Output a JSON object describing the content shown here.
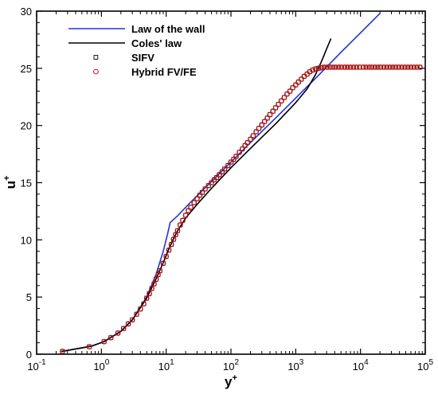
{
  "chart_data": {
    "type": "line",
    "x_scale": "log",
    "xlim": [
      0.1,
      100000
    ],
    "ylim": [
      0,
      30
    ],
    "xlabel": "y",
    "xlabel_sup": "+",
    "ylabel": "u",
    "ylabel_sup": "+",
    "x_tick_values": [
      0.1,
      1,
      10,
      100,
      1000,
      10000,
      100000
    ],
    "x_tick_labels": [
      {
        "base": "10",
        "exp": "-1"
      },
      {
        "base": "10",
        "exp": "0"
      },
      {
        "base": "10",
        "exp": "1"
      },
      {
        "base": "10",
        "exp": "2"
      },
      {
        "base": "10",
        "exp": "3"
      },
      {
        "base": "10",
        "exp": "4"
      },
      {
        "base": "10",
        "exp": "5"
      }
    ],
    "y_tick_values": [
      0,
      5,
      10,
      15,
      20,
      25,
      30
    ],
    "y_tick_labels": [
      "0",
      "5",
      "10",
      "15",
      "20",
      "25",
      "30"
    ],
    "legend_position": "top-left",
    "series": [
      {
        "name": "Law of the wall",
        "style": "line",
        "color": "#2233dd",
        "x": [
          0.24,
          0.7,
          1.1,
          2,
          3,
          5,
          7,
          9,
          10.5,
          11.5,
          12,
          15,
          20,
          30,
          50,
          100,
          200,
          500,
          1000,
          2000,
          5000,
          10000,
          20000
        ],
        "y": [
          0.24,
          0.7,
          1.1,
          2,
          3,
          5,
          7,
          9,
          10.5,
          11.5,
          11.6,
          12.1,
          12.85,
          13.85,
          15.1,
          16.8,
          18.5,
          20.7,
          22.4,
          24.1,
          26.4,
          28.1,
          29.8
        ]
      },
      {
        "name": "Coles' law",
        "style": "line",
        "color": "#000000",
        "x": [
          0.24,
          0.7,
          1.1,
          2,
          3,
          5,
          7,
          9,
          11,
          13,
          15,
          20,
          30,
          50,
          100,
          200,
          500,
          1000,
          1500,
          2000,
          2500,
          3000,
          3500
        ],
        "y": [
          0.24,
          0.7,
          1.1,
          2,
          3,
          4.9,
          6.6,
          8.0,
          9.2,
          10.1,
          10.8,
          11.9,
          13.1,
          14.5,
          16.3,
          18.0,
          20.2,
          22.0,
          23.2,
          24.4,
          25.6,
          26.7,
          27.6
        ]
      },
      {
        "name": "SIFV",
        "style": "square",
        "color": "#000000",
        "x": [
          0.25,
          0.65,
          1.1,
          1.4,
          1.8,
          2.2,
          2.6,
          3,
          3.5,
          4,
          4.5,
          5,
          5.5,
          6,
          6.5,
          7,
          7.5,
          8,
          9,
          10,
          11,
          12,
          13,
          14,
          15,
          16.5,
          18,
          20,
          22,
          24,
          27,
          30,
          33,
          36,
          40,
          45,
          50,
          55,
          60,
          66,
          73,
          80,
          90,
          100,
          110,
          120,
          135,
          150,
          165,
          180,
          200,
          220,
          245,
          270,
          300,
          330,
          365,
          400,
          445,
          490,
          540,
          600,
          665,
          735,
          815,
          900,
          1000,
          1100,
          1220,
          1350,
          1500,
          1650,
          1830,
          2030,
          2250,
          2500,
          2750,
          3050,
          3400,
          3750,
          4150,
          4600,
          5100,
          5700,
          6300,
          7000,
          7800,
          8700,
          9700,
          11000,
          12200,
          13600,
          15000,
          16700,
          18500,
          20500,
          23000,
          25500,
          28500,
          31500,
          35000,
          39000,
          43500,
          48500,
          54000,
          60000,
          67000,
          74500,
          83000
        ],
        "y": [
          0.25,
          0.65,
          1.1,
          1.45,
          1.85,
          2.25,
          2.65,
          3.0,
          3.5,
          3.95,
          4.4,
          4.9,
          5.3,
          5.75,
          6.15,
          6.55,
          6.95,
          7.3,
          7.95,
          8.55,
          9.1,
          9.6,
          10.05,
          10.45,
          10.8,
          11.3,
          11.7,
          12.15,
          12.55,
          12.85,
          13.25,
          13.6,
          13.9,
          14.15,
          14.45,
          14.75,
          15.0,
          15.25,
          15.45,
          15.7,
          15.95,
          16.2,
          16.5,
          16.8,
          17.05,
          17.3,
          17.65,
          17.95,
          18.25,
          18.5,
          18.8,
          19.1,
          19.45,
          19.75,
          20.05,
          20.35,
          20.65,
          20.95,
          21.25,
          21.55,
          21.85,
          22.15,
          22.45,
          22.75,
          23.0,
          23.3,
          23.55,
          23.8,
          24.05,
          24.3,
          24.5,
          24.7,
          24.85,
          24.95,
          25.0,
          25.05,
          25.1,
          25.1,
          25.1,
          25.1,
          25.1,
          25.1,
          25.1,
          25.1,
          25.1,
          25.1,
          25.1,
          25.1,
          25.1,
          25.1,
          25.1,
          25.1,
          25.1,
          25.1,
          25.1,
          25.1,
          25.1,
          25.1,
          25.1,
          25.1,
          25.1,
          25.1,
          25.1,
          25.1,
          25.1,
          25.1,
          25.1,
          25.1,
          25.1
        ]
      },
      {
        "name": "Hybrid FV/FE",
        "style": "circle",
        "color": "#cc1111",
        "same_as": "SIFV"
      }
    ]
  }
}
